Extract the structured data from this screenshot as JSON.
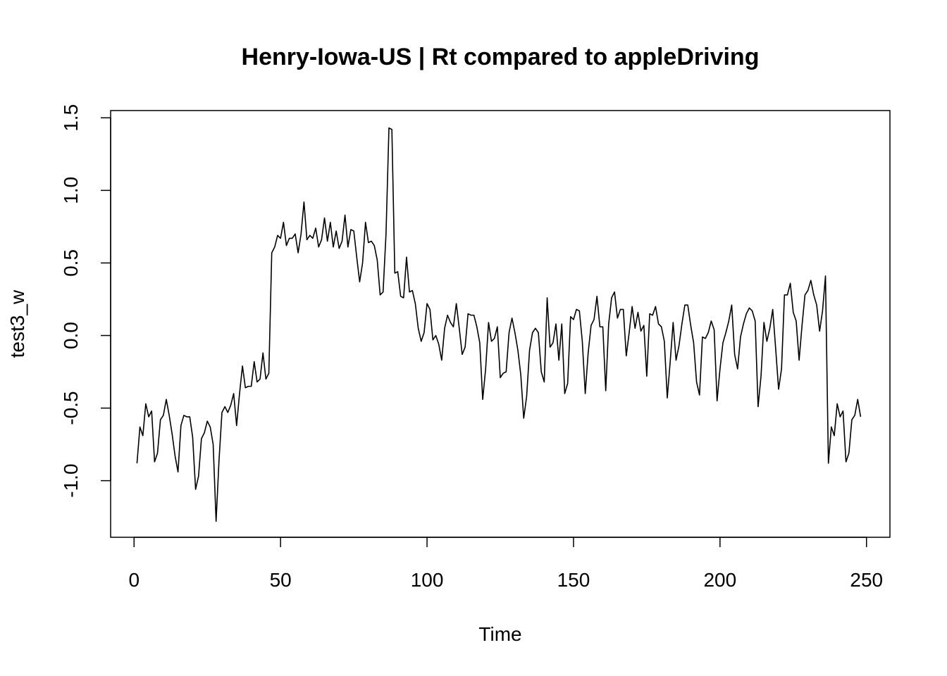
{
  "chart_data": {
    "type": "line",
    "title": "Henry-Iowa-US | Rt compared to appleDriving",
    "xlabel": "Time",
    "ylabel": "test3_w",
    "xlim": [
      -8,
      258
    ],
    "ylim": [
      -1.39,
      1.55
    ],
    "x_ticks": [
      0,
      50,
      100,
      150,
      200,
      250
    ],
    "y_ticks": [
      -1.0,
      -0.5,
      0.0,
      0.5,
      1.0,
      1.5
    ],
    "x_tick_labels": [
      "0",
      "50",
      "100",
      "150",
      "200",
      "250"
    ],
    "y_tick_labels": [
      "-1.0",
      "-0.5",
      "0.0",
      "0.5",
      "1.0",
      "1.5"
    ],
    "grid": false,
    "line_color": "#000000",
    "series": [
      {
        "x": [
          1,
          2,
          3,
          4,
          5,
          6,
          7,
          8,
          9,
          10,
          11,
          12,
          13,
          14,
          15,
          16,
          17,
          18,
          19,
          20,
          21,
          22,
          23,
          24,
          25,
          26,
          27,
          28,
          29,
          30,
          31,
          32,
          33,
          34,
          35,
          36,
          37,
          38,
          39,
          40,
          41,
          42,
          43,
          44,
          45,
          46,
          47,
          48,
          49,
          50,
          51,
          52,
          53,
          54,
          55,
          56,
          57,
          58,
          59,
          60,
          61,
          62,
          63,
          64,
          65,
          66,
          67,
          68,
          69,
          70,
          71,
          72,
          73,
          74,
          75,
          76,
          77,
          78,
          79,
          80,
          81,
          82,
          83,
          84,
          85,
          86,
          87,
          88,
          89,
          90,
          91,
          92,
          93,
          94,
          95,
          96,
          97,
          98,
          99,
          100,
          101,
          102,
          103,
          104,
          105,
          106,
          107,
          108,
          109,
          110,
          111,
          112,
          113,
          114,
          115,
          116,
          117,
          118,
          119,
          120,
          121,
          122,
          123,
          124,
          125,
          126,
          127,
          128,
          129,
          130,
          131,
          132,
          133,
          134,
          135,
          136,
          137,
          138,
          139,
          140,
          141,
          142,
          143,
          144,
          145,
          146,
          147,
          148,
          149,
          150,
          151,
          152,
          153,
          154,
          155,
          156,
          157,
          158,
          159,
          160,
          161,
          162,
          163,
          164,
          165,
          166,
          167,
          168,
          169,
          170,
          171,
          172,
          173,
          174,
          175,
          176,
          177,
          178,
          179,
          180,
          181,
          182,
          183,
          184,
          185,
          186,
          187,
          188,
          189,
          190,
          191,
          192,
          193,
          194,
          195,
          196,
          197,
          198,
          199,
          200,
          201,
          202,
          203,
          204,
          205,
          206,
          207,
          208,
          209,
          210,
          211,
          212,
          213,
          214,
          215,
          216,
          217,
          218,
          219,
          220,
          221,
          222,
          223,
          224,
          225,
          226,
          227,
          228,
          229,
          230,
          231,
          232,
          233,
          234,
          235,
          236,
          237,
          238,
          239,
          240,
          241,
          242,
          243,
          244,
          245,
          246,
          247,
          248
        ],
        "y": [
          -0.88,
          -0.63,
          -0.69,
          -0.47,
          -0.56,
          -0.52,
          -0.87,
          -0.81,
          -0.58,
          -0.55,
          -0.44,
          -0.55,
          -0.68,
          -0.83,
          -0.94,
          -0.62,
          -0.55,
          -0.56,
          -0.56,
          -0.7,
          -1.06,
          -0.97,
          -0.71,
          -0.67,
          -0.59,
          -0.63,
          -0.75,
          -1.28,
          -0.86,
          -0.53,
          -0.49,
          -0.53,
          -0.48,
          -0.4,
          -0.62,
          -0.4,
          -0.21,
          -0.36,
          -0.35,
          -0.35,
          -0.18,
          -0.32,
          -0.3,
          -0.12,
          -0.3,
          -0.26,
          0.57,
          0.61,
          0.69,
          0.67,
          0.78,
          0.62,
          0.67,
          0.67,
          0.7,
          0.57,
          0.7,
          0.92,
          0.66,
          0.69,
          0.67,
          0.74,
          0.61,
          0.66,
          0.81,
          0.65,
          0.78,
          0.61,
          0.72,
          0.6,
          0.65,
          0.83,
          0.61,
          0.73,
          0.72,
          0.54,
          0.37,
          0.5,
          0.78,
          0.64,
          0.65,
          0.62,
          0.52,
          0.28,
          0.3,
          0.7,
          1.43,
          1.42,
          0.43,
          0.44,
          0.27,
          0.26,
          0.54,
          0.3,
          0.31,
          0.22,
          0.05,
          -0.04,
          0.02,
          0.22,
          0.18,
          -0.03,
          0.0,
          -0.06,
          -0.17,
          0.05,
          0.14,
          0.09,
          0.06,
          0.22,
          0.05,
          -0.13,
          -0.08,
          0.15,
          0.14,
          0.14,
          0.06,
          -0.05,
          -0.44,
          -0.23,
          0.09,
          -0.04,
          -0.02,
          0.06,
          -0.29,
          -0.26,
          -0.25,
          0.02,
          0.12,
          0.02,
          -0.1,
          -0.27,
          -0.57,
          -0.42,
          -0.1,
          0.02,
          0.05,
          0.02,
          -0.25,
          -0.32,
          0.26,
          -0.08,
          -0.05,
          0.08,
          -0.17,
          0.08,
          -0.4,
          -0.33,
          0.13,
          0.11,
          0.18,
          0.17,
          -0.04,
          -0.4,
          -0.12,
          0.07,
          0.11,
          0.27,
          0.06,
          0.06,
          -0.38,
          0.08,
          0.26,
          0.3,
          0.12,
          0.18,
          0.18,
          -0.14,
          0.02,
          0.2,
          0.05,
          0.16,
          0.03,
          0.07,
          -0.28,
          0.15,
          0.14,
          0.2,
          0.08,
          0.06,
          -0.04,
          -0.43,
          -0.18,
          0.09,
          -0.17,
          -0.07,
          0.08,
          0.21,
          0.21,
          0.07,
          -0.05,
          -0.32,
          -0.41,
          -0.01,
          -0.02,
          0.02,
          0.1,
          0.04,
          -0.45,
          -0.23,
          -0.05,
          0.02,
          0.1,
          0.21,
          -0.13,
          -0.23,
          -0.01,
          0.08,
          0.15,
          0.19,
          0.17,
          0.1,
          -0.49,
          -0.28,
          0.09,
          -0.04,
          0.05,
          0.18,
          -0.09,
          -0.37,
          -0.23,
          0.28,
          0.28,
          0.36,
          0.16,
          0.1,
          -0.17,
          0.07,
          0.28,
          0.31,
          0.38,
          0.28,
          0.21,
          0.03,
          0.17,
          0.41,
          -0.88,
          -0.63,
          -0.69,
          -0.47,
          -0.56,
          -0.52,
          -0.87,
          -0.81,
          -0.58,
          -0.55,
          -0.44,
          -0.56
        ]
      }
    ]
  }
}
